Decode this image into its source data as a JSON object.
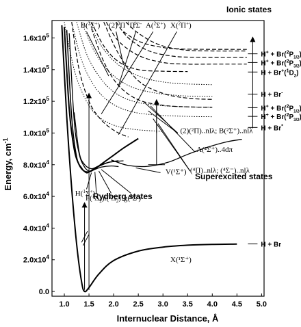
{
  "chart_data": {
    "type": "line",
    "xlabel": "Internuclear Distance, Å",
    "ylabel": "Energy, cm",
    "ylabel_sup": "-1",
    "xlim": [
      0.75,
      5.05
    ],
    "ylim": [
      -3000,
      171000
    ],
    "x_ticks": [
      1.0,
      1.5,
      2.0,
      2.5,
      3.0,
      3.5,
      4.0,
      4.5,
      5.0
    ],
    "x_tick_labels": [
      "1.0",
      "1.5",
      "2.0",
      "2.5",
      "3.0",
      "3.5",
      "4.0",
      "4.5",
      "5.0"
    ],
    "y_ticks": [
      0,
      20000,
      40000,
      60000,
      80000,
      100000,
      120000,
      140000,
      160000
    ],
    "y_tick_labels": [
      {
        "m": "0.0",
        "e": ""
      },
      {
        "m": "2.0x10",
        "e": "4"
      },
      {
        "m": "4.0x10",
        "e": "4"
      },
      {
        "m": "6.0x10",
        "e": "4"
      },
      {
        "m": "8.0x10",
        "e": "4"
      },
      {
        "m": "1.0x10",
        "e": "5"
      },
      {
        "m": "1.2x10",
        "e": "5"
      },
      {
        "m": "1.4x10",
        "e": "5"
      },
      {
        "m": "1.6x10",
        "e": "5"
      }
    ],
    "series": [
      {
        "style": "solid",
        "width": 2,
        "points": [
          [
            0.95,
            168000
          ],
          [
            1.05,
            110000
          ],
          [
            1.15,
            65000
          ],
          [
            1.25,
            30000
          ],
          [
            1.35,
            6000
          ],
          [
            1.41,
            0
          ],
          [
            1.5,
            2500
          ],
          [
            1.7,
            11000
          ],
          [
            2.0,
            19500
          ],
          [
            2.5,
            25500
          ],
          [
            3.0,
            28000
          ],
          [
            3.5,
            29200
          ],
          [
            4.0,
            29700
          ],
          [
            4.5,
            29900
          ]
        ]
      },
      {
        "style": "solid",
        "width": 2,
        "points": [
          [
            1.0,
            167000
          ],
          [
            1.1,
            115000
          ],
          [
            1.2,
            90000
          ],
          [
            1.3,
            80000
          ],
          [
            1.4,
            76000
          ],
          [
            1.5,
            75500
          ],
          [
            1.6,
            77000
          ],
          [
            1.8,
            81500
          ],
          [
            2.0,
            86000
          ],
          [
            2.2,
            90500
          ],
          [
            2.5,
            96500
          ]
        ]
      },
      {
        "style": "solid",
        "width": 1.5,
        "points": [
          [
            1.05,
            165000
          ],
          [
            1.15,
            110000
          ],
          [
            1.25,
            85000
          ],
          [
            1.35,
            78000
          ],
          [
            1.45,
            74800
          ],
          [
            1.55,
            76500
          ],
          [
            1.7,
            79000
          ],
          [
            1.9,
            81500
          ],
          [
            2.1,
            82500
          ]
        ]
      },
      {
        "style": "solid",
        "width": 1.3,
        "points": [
          [
            1.1,
            163000
          ],
          [
            1.2,
            108000
          ],
          [
            1.3,
            87000
          ],
          [
            1.4,
            79000
          ],
          [
            1.5,
            76000
          ],
          [
            1.6,
            76800
          ],
          [
            1.75,
            78500
          ],
          [
            1.95,
            79200
          ],
          [
            2.1,
            78800
          ]
        ]
      },
      {
        "style": "solid",
        "width": 1.3,
        "points": [
          [
            1.2,
            113000
          ],
          [
            1.3,
            88000
          ],
          [
            1.4,
            80500
          ],
          [
            1.55,
            77500
          ],
          [
            1.7,
            79300
          ],
          [
            1.9,
            81500
          ],
          [
            2.2,
            82500
          ]
        ]
      },
      {
        "style": "solid",
        "width": 1.3,
        "points": [
          [
            1.95,
            83000
          ],
          [
            2.3,
            79500
          ],
          [
            2.7,
            79000
          ],
          [
            3.1,
            81500
          ],
          [
            3.5,
            86500
          ],
          [
            3.9,
            91000
          ],
          [
            4.3,
            94500
          ],
          [
            4.6,
            96000
          ]
        ]
      },
      {
        "style": "dash",
        "width": 1.2,
        "points": [
          [
            1.15,
            170000
          ],
          [
            1.3,
            140000
          ],
          [
            1.5,
            120000
          ],
          [
            1.7,
            110000
          ],
          [
            1.9,
            104000
          ],
          [
            2.1,
            100000
          ],
          [
            2.3,
            97500
          ]
        ]
      },
      {
        "style": "dash",
        "width": 1.2,
        "points": [
          [
            1.55,
            170000
          ],
          [
            1.8,
            155000
          ],
          [
            2.1,
            145000
          ],
          [
            2.5,
            140000
          ],
          [
            3.0,
            139000
          ],
          [
            3.5,
            138800
          ]
        ]
      },
      {
        "style": "dash",
        "width": 1.2,
        "points": [
          [
            1.85,
            170000
          ],
          [
            2.1,
            158000
          ],
          [
            2.5,
            149000
          ],
          [
            3.0,
            144500
          ],
          [
            3.5,
            143500
          ],
          [
            4.0,
            143500
          ],
          [
            4.7,
            143500
          ]
        ]
      },
      {
        "style": "dash",
        "width": 1.2,
        "points": [
          [
            2.05,
            170000
          ],
          [
            2.3,
            160000
          ],
          [
            2.7,
            152000
          ],
          [
            3.2,
            148500
          ],
          [
            3.7,
            147800
          ],
          [
            4.7,
            147700
          ]
        ]
      },
      {
        "style": "dash",
        "width": 1.2,
        "points": [
          [
            2.25,
            170000
          ],
          [
            2.5,
            163000
          ],
          [
            2.9,
            156000
          ],
          [
            3.4,
            152500
          ],
          [
            4.0,
            151800
          ],
          [
            4.7,
            151800
          ]
        ]
      },
      {
        "style": "dash",
        "width": 1.2,
        "points": [
          [
            2.2,
            164000
          ],
          [
            2.5,
            158000
          ],
          [
            2.9,
            154500
          ],
          [
            3.4,
            153000
          ],
          [
            4.7,
            152800
          ]
        ]
      },
      {
        "style": "dash",
        "width": 1.2,
        "points": [
          [
            1.8,
            170000
          ],
          [
            2.1,
            150000
          ],
          [
            2.5,
            133000
          ],
          [
            3.0,
            125000
          ],
          [
            3.5,
            122000
          ],
          [
            4.0,
            121200
          ]
        ]
      },
      {
        "style": "dash",
        "width": 1.2,
        "points": [
          [
            1.55,
            166000
          ],
          [
            1.8,
            145000
          ],
          [
            2.1,
            130000
          ],
          [
            2.5,
            121000
          ],
          [
            3.0,
            117500
          ],
          [
            3.5,
            116500
          ],
          [
            4.0,
            116200
          ]
        ]
      },
      {
        "style": "dot",
        "width": 1,
        "points": [
          [
            1.0,
            170000
          ],
          [
            1.2,
            140000
          ],
          [
            1.4,
            123000
          ],
          [
            1.6,
            113000
          ],
          [
            1.8,
            108000
          ],
          [
            2.1,
            104000
          ],
          [
            2.5,
            102000
          ],
          [
            3.0,
            101000
          ]
        ]
      },
      {
        "style": "dot",
        "width": 1,
        "points": [
          [
            1.15,
            170000
          ],
          [
            1.35,
            146000
          ],
          [
            1.6,
            130000
          ],
          [
            1.9,
            120000
          ],
          [
            2.3,
            114000
          ],
          [
            2.8,
            111500
          ],
          [
            3.5,
            110500
          ],
          [
            4.0,
            110300
          ]
        ]
      },
      {
        "style": "dot",
        "width": 1,
        "points": [
          [
            1.25,
            170000
          ],
          [
            1.45,
            150000
          ],
          [
            1.7,
            136000
          ],
          [
            2.0,
            126000
          ],
          [
            2.4,
            120000
          ],
          [
            2.9,
            117500
          ],
          [
            3.5,
            116500
          ],
          [
            4.0,
            116300
          ]
        ]
      },
      {
        "style": "dot",
        "width": 1,
        "points": [
          [
            1.35,
            170000
          ],
          [
            1.6,
            152000
          ],
          [
            1.9,
            139000
          ],
          [
            2.3,
            130000
          ],
          [
            2.8,
            125500
          ],
          [
            3.4,
            123500
          ],
          [
            4.0,
            123000
          ]
        ]
      },
      {
        "style": "dot",
        "width": 1,
        "points": [
          [
            1.5,
            170000
          ],
          [
            1.75,
            155000
          ],
          [
            2.1,
            143000
          ],
          [
            2.6,
            135000
          ],
          [
            3.2,
            131500
          ],
          [
            4.0,
            130500
          ]
        ]
      }
    ],
    "ionic_states_label": "Ionic states",
    "state_labels": [
      {
        "text": "B(",
        "sup": "2",
        "mid": "Σ",
        "sup2": "+",
        "end": ")",
        "x": 1.33,
        "y": 166500
      },
      {
        "text": "(2)",
        "sup": "3",
        "mid": "Π ",
        "sup2": "1",
        "end": "Π",
        "x": 1.9,
        "y": 166500
      },
      {
        "text": "",
        "sup": "4",
        "mid": "Σ",
        "sup2": "-",
        "end": "",
        "x": 2.4,
        "y": 166500
      },
      {
        "text": "A(",
        "sup": "2",
        "mid": "Σ",
        "sup2": "+",
        "end": ")",
        "x": 2.65,
        "y": 166500
      },
      {
        "text": "X(",
        "sup": "2",
        "mid": "Π",
        "sup2": "+",
        "end": ")",
        "x": 3.15,
        "y": 166500
      }
    ],
    "asymptotes": [
      {
        "text": "H",
        "sup": "+",
        "mid": " + Br(",
        "sup2": "2",
        "end": "P",
        "sub": "1/2",
        "tail": ")",
        "y": 150000
      },
      {
        "text": "H",
        "sup": "+",
        "mid": " + Br(",
        "sup2": "2",
        "end": "P",
        "sub": "3/2",
        "tail": ")",
        "y": 144500
      },
      {
        "text": "H + Br",
        "sup": "+",
        "mid": "(",
        "sup2": "1",
        "end": "D",
        "sub": "2",
        "tail": ")",
        "y": 138500
      },
      {
        "text": "H + Br",
        "sup": "-",
        "mid": "",
        "sup2": "",
        "end": "",
        "sub": "",
        "tail": "",
        "y": 124500
      },
      {
        "text": "H",
        "sup": "+",
        "mid": " + Br(",
        "sup2": "2",
        "end": "P",
        "sub": "1/2",
        "tail": ")",
        "y": 116000
      },
      {
        "text": "H",
        "sup": "+",
        "mid": " + Br(",
        "sup2": "2",
        "end": "P",
        "sub": "3/2",
        "tail": ")",
        "y": 110500
      },
      {
        "text": "H + Br",
        "sup": "*",
        "mid": "",
        "sup2": "",
        "end": "",
        "sub": "",
        "tail": "",
        "y": 103500
      },
      {
        "text": "H + Br",
        "sup": "",
        "mid": "",
        "sup2": "",
        "end": "",
        "sub": "",
        "tail": "",
        "y": 30000
      }
    ],
    "rydberg_labels": [
      {
        "text": "H(",
        "sup": "1",
        "mid": "Σ",
        "sup2": "+",
        "end": ")"
      },
      {
        "text": "F(",
        "sup": "1",
        "mid": "Δ",
        "sub": "2",
        "end": ")"
      },
      {
        "text": "i(",
        "sup": "3",
        "mid": "Δ",
        "sub": "2",
        "end": ")"
      },
      {
        "text": "g(",
        "sup": "3",
        "mid": "Σ",
        "sup2": "-",
        "end": ")"
      }
    ],
    "super_labels": {
      "line1": "(2)(²Π)..nlλ; B(²Σ⁺)..nlλ",
      "line2": "A(²Σ⁺)..4dπ",
      "line3": "(⁴Π)..nlλ; (⁴Σ⁻)..nlλ",
      "v_state": "V(¹Σ⁺)"
    },
    "x_state_label": "X(¹Σ⁺)",
    "region_labels": {
      "rydberg": "Rydberg states",
      "superexcited": "Superexcited states"
    }
  }
}
